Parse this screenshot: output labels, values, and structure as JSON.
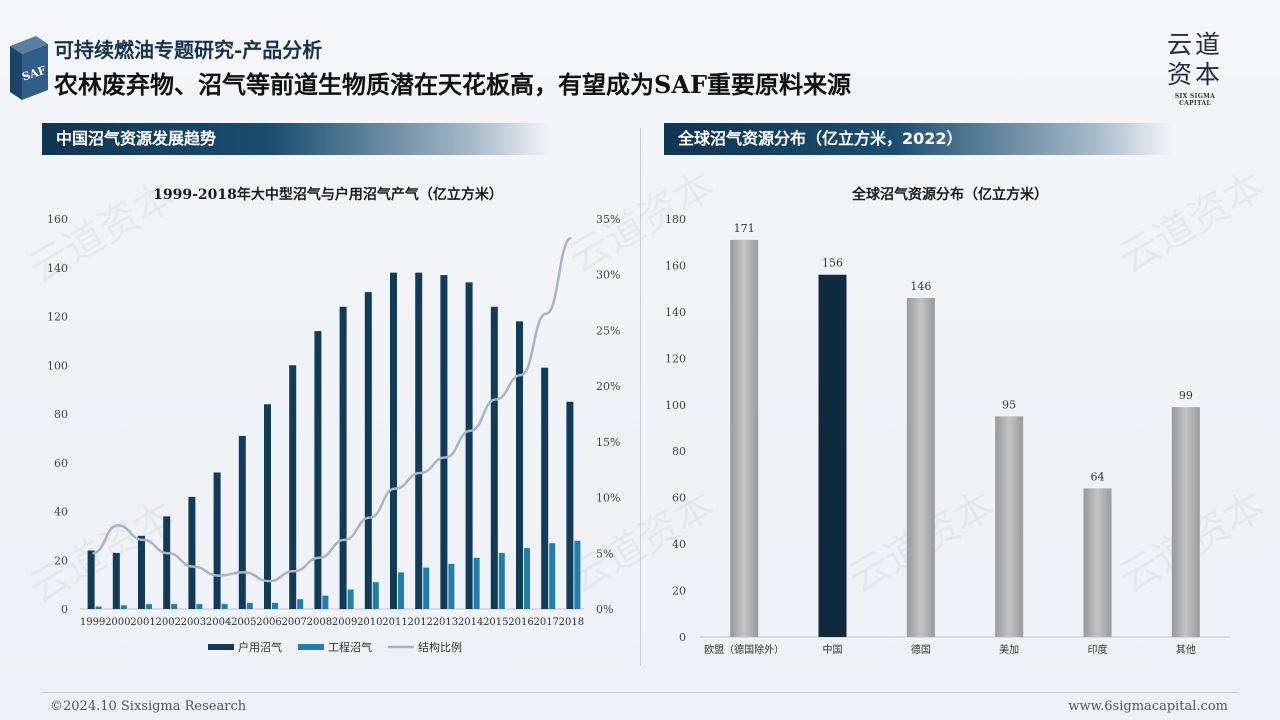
{
  "header": {
    "logo_badge": "SAF",
    "subtitle": "可持续燃油专题研究-产品分析",
    "title": "农林废弃物、沼气等前道生物质潜在天花板高，有望成为SAF重要原料来源"
  },
  "brand": {
    "name_cn": "云道资本",
    "name_en": "SIX SIGMA CAPITAL"
  },
  "left_section": {
    "label": "中国沼气资源发展趋势"
  },
  "right_section": {
    "label": "全球沼气资源分布（亿立方米，2022）"
  },
  "watermark_text": "云道资本",
  "footer": {
    "left": "©2024.10 Sixsigma Research",
    "right": "www.6sigmacapital.com"
  },
  "chart_data": [
    {
      "type": "bar",
      "title": "1999-2018年大中型沼气与户用沼气产气（亿立方米）",
      "categories": [
        "1999",
        "2000",
        "2001",
        "2002",
        "2003",
        "2004",
        "2005",
        "2006",
        "2007",
        "2008",
        "2009",
        "2010",
        "2011",
        "2012",
        "2013",
        "2014",
        "2015",
        "2016",
        "2017",
        "2018"
      ],
      "series": [
        {
          "name": "户用沼气",
          "type": "bar",
          "axis": "left",
          "color": "#123b58",
          "values": [
            24,
            23,
            30,
            38,
            46,
            56,
            71,
            84,
            100,
            114,
            124,
            130,
            138,
            138,
            137,
            134,
            124,
            118,
            99,
            85
          ]
        },
        {
          "name": "工程沼气",
          "type": "bar",
          "axis": "left",
          "color": "#1f7eab",
          "values": [
            1,
            1.5,
            2,
            2,
            2,
            2,
            2.5,
            2.5,
            4,
            5.5,
            8,
            11,
            15,
            17,
            18.5,
            21,
            23,
            25,
            27,
            28
          ]
        },
        {
          "name": "结构比例",
          "type": "line",
          "axis": "right",
          "color": "#a9b3c6",
          "values": [
            0.05,
            0.075,
            0.062,
            0.05,
            0.038,
            0.03,
            0.033,
            0.025,
            0.034,
            0.046,
            0.062,
            0.082,
            0.108,
            0.122,
            0.136,
            0.16,
            0.188,
            0.21,
            0.265,
            0.333
          ]
        }
      ],
      "ylim": [
        0,
        160
      ],
      "yticks": [
        0,
        20,
        40,
        60,
        80,
        100,
        120,
        140,
        160
      ],
      "y2lim": [
        0,
        0.35
      ],
      "y2ticks": [
        "0%",
        "5%",
        "10%",
        "15%",
        "20%",
        "25%",
        "30%",
        "35%"
      ],
      "legend_position": "bottom"
    },
    {
      "type": "bar",
      "title": "全球沼气资源分布（亿立方米）",
      "categories": [
        "欧盟（德国除外）",
        "中国",
        "德国",
        "美加",
        "印度",
        "其他"
      ],
      "values": [
        171,
        156,
        146,
        95,
        64,
        99
      ],
      "colors": [
        "#a9a9a9",
        "#0f2a3d",
        "#a9a9a9",
        "#a9a9a9",
        "#a9a9a9",
        "#a9a9a9"
      ],
      "ylim": [
        0,
        180
      ],
      "yticks": [
        0,
        20,
        40,
        60,
        80,
        100,
        120,
        140,
        160,
        180
      ],
      "data_labels": true
    }
  ]
}
